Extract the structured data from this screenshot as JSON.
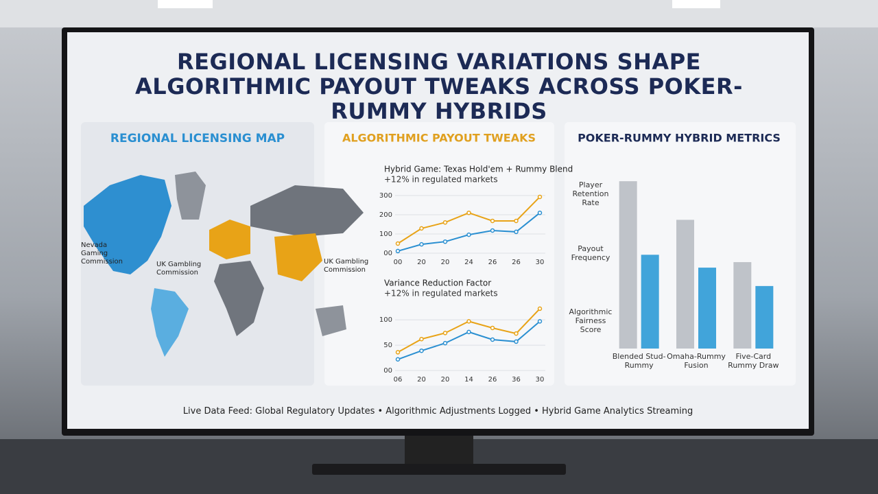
{
  "title": "REGIONAL LICENSING VARIATIONS SHAPE ALGORITHMIC PAYOUT TWEAKS ACROSS POKER-RUMMY HYBRIDS",
  "map": {
    "title": "REGIONAL LICENSING MAP",
    "labels": [
      "Nevada Gaming Commission",
      "UK Gambling Commission",
      "UK Gambling Commission"
    ]
  },
  "payout_panel": {
    "title": "ALGORITHMIC PAYOUT TWEAKS"
  },
  "chart_data": [
    {
      "type": "line",
      "title": "Hybrid Game: Texas Hold'em + Rummy Blend",
      "subtitle": "+12% in regulated markets",
      "categories": [
        "00",
        "20",
        "20",
        "24",
        "26",
        "26",
        "30"
      ],
      "series": [
        {
          "color": "#e8a317",
          "values": [
            50,
            129,
            160,
            210,
            168,
            168,
            293
          ]
        },
        {
          "color": "#2a8fd1",
          "values": [
            11,
            46,
            60,
            96,
            118,
            111,
            210
          ]
        }
      ],
      "ylim": [
        0,
        300
      ],
      "yticks": [
        {
          "value": 0,
          "label": "00"
        },
        100,
        200,
        300
      ],
      "grid": true
    },
    {
      "type": "line",
      "title": "Variance Reduction Factor",
      "subtitle": "+12% in regulated markets",
      "categories": [
        "06",
        "20",
        "20",
        "14",
        "26",
        "36",
        "30"
      ],
      "series": [
        {
          "color": "#e8a317",
          "values": [
            36,
            62,
            74,
            97,
            84,
            73,
            122
          ]
        },
        {
          "color": "#2a8fd1",
          "values": [
            22,
            39,
            54,
            76,
            61,
            57,
            97
          ]
        }
      ],
      "ylim": [
        0,
        130
      ],
      "yticks": [
        {
          "value": 0,
          "label": "00"
        },
        50,
        100
      ],
      "grid": true
    },
    {
      "type": "bar",
      "title": "POKER-RUMMY HYBRID METRICS",
      "categories": [
        "Blended Stud-Rummy",
        "Omaha-Rummy Fusion",
        "Five-Card Rummy Draw"
      ],
      "y_labels": [
        "Player Retention Rate",
        "Payout Frequency",
        "Algorithmic Fairness Score"
      ],
      "series": [
        {
          "color": "#b9bcc3",
          "values": [
            91,
            70,
            47
          ]
        },
        {
          "color": "#2e9ad6",
          "values": [
            51,
            44,
            34
          ]
        }
      ],
      "ylim": [
        0,
        100
      ]
    }
  ],
  "footer": "Live Data Feed: Global Regulatory Updates • Algorithmic Adjustments Logged • Hybrid Game Analytics Streaming"
}
